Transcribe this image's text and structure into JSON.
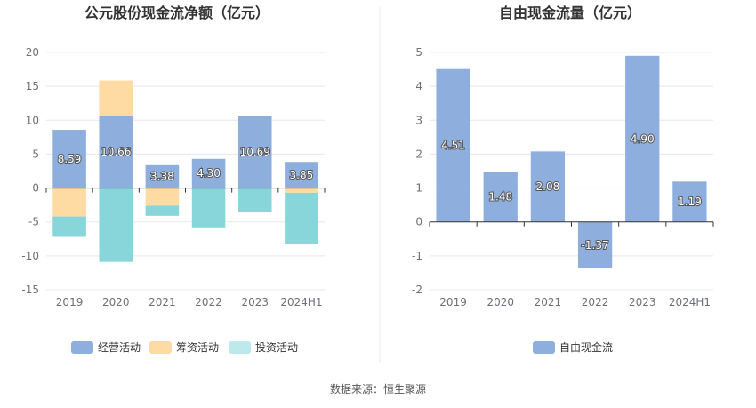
{
  "colors": {
    "operating": "#8eaede",
    "financing": "#fddba3",
    "investing": "#88d6da",
    "investing_legend": "#bde9ec",
    "fcf": "#8eaede",
    "grid": "#e6e8ee",
    "axis": "#333333"
  },
  "source": "数据来源：恒生聚源",
  "chart_data": [
    {
      "type": "bar",
      "stacked": true,
      "title": "公元股份现金流净额（亿元）",
      "categories": [
        "2019",
        "2020",
        "2021",
        "2022",
        "2023",
        "2024H1"
      ],
      "ylim": [
        -15,
        20
      ],
      "yticks": [
        -15,
        -10,
        -5,
        0,
        5,
        10,
        15,
        20
      ],
      "series": [
        {
          "name": "经营活动",
          "key": "operating",
          "values": [
            8.59,
            10.66,
            3.38,
            4.3,
            10.69,
            3.85
          ]
        },
        {
          "name": "筹资活动",
          "key": "financing",
          "values": [
            -4.2,
            5.2,
            -2.6,
            0.0,
            0.0,
            -0.7
          ]
        },
        {
          "name": "投资活动",
          "key": "investing",
          "values": [
            -3.0,
            -10.9,
            -1.5,
            -5.8,
            -3.5,
            -7.5
          ]
        }
      ],
      "data_labels": [
        "8.59",
        "10.66",
        "3.38",
        "4.30",
        "10.69",
        "3.85"
      ],
      "legend": [
        "经营活动",
        "筹资活动",
        "投资活动"
      ]
    },
    {
      "type": "bar",
      "title": "自由现金流量（亿元）",
      "categories": [
        "2019",
        "2020",
        "2021",
        "2022",
        "2023",
        "2024H1"
      ],
      "ylim": [
        -2,
        5
      ],
      "yticks": [
        -2,
        -1,
        0,
        1,
        2,
        3,
        4,
        5
      ],
      "series": [
        {
          "name": "自由现金流",
          "key": "fcf",
          "values": [
            4.51,
            1.48,
            2.08,
            -1.37,
            4.9,
            1.19
          ]
        }
      ],
      "data_labels": [
        "4.51",
        "1.48",
        "2.08",
        "-1.37",
        "4.90",
        "1.19"
      ],
      "legend": [
        "自由现金流"
      ]
    }
  ]
}
